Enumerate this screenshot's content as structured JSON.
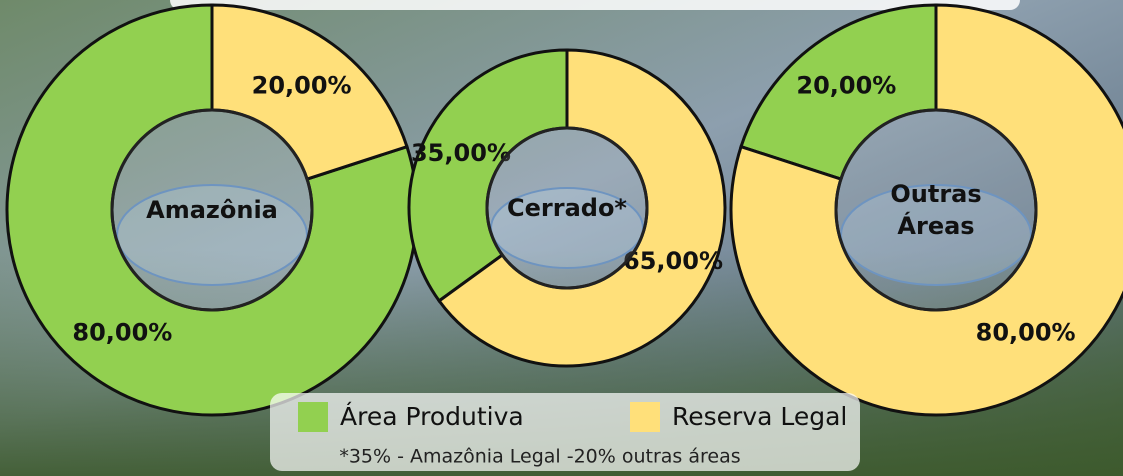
{
  "chart_data": [
    {
      "type": "pie",
      "title": "Amazônia",
      "categories": [
        "Área Produtiva",
        "Reserva Legal"
      ],
      "values": [
        80,
        20
      ],
      "value_labels": [
        "80,00%",
        "20,00%"
      ],
      "colors": [
        "#92d050",
        "#ffe07a"
      ]
    },
    {
      "type": "pie",
      "title": "Cerrado*",
      "categories": [
        "Área Produtiva",
        "Reserva Legal"
      ],
      "values": [
        35,
        65
      ],
      "value_labels": [
        "35,00%",
        "65,00%"
      ],
      "colors": [
        "#92d050",
        "#ffe07a"
      ]
    },
    {
      "type": "pie",
      "title": "Outras Áreas",
      "categories": [
        "Área Produtiva",
        "Reserva Legal"
      ],
      "values": [
        20,
        80
      ],
      "value_labels": [
        "20,00%",
        "80,00%"
      ],
      "colors": [
        "#92d050",
        "#ffe07a"
      ]
    }
  ],
  "footnote": "*35% - Amazônia Legal  -20% outras áreas"
}
